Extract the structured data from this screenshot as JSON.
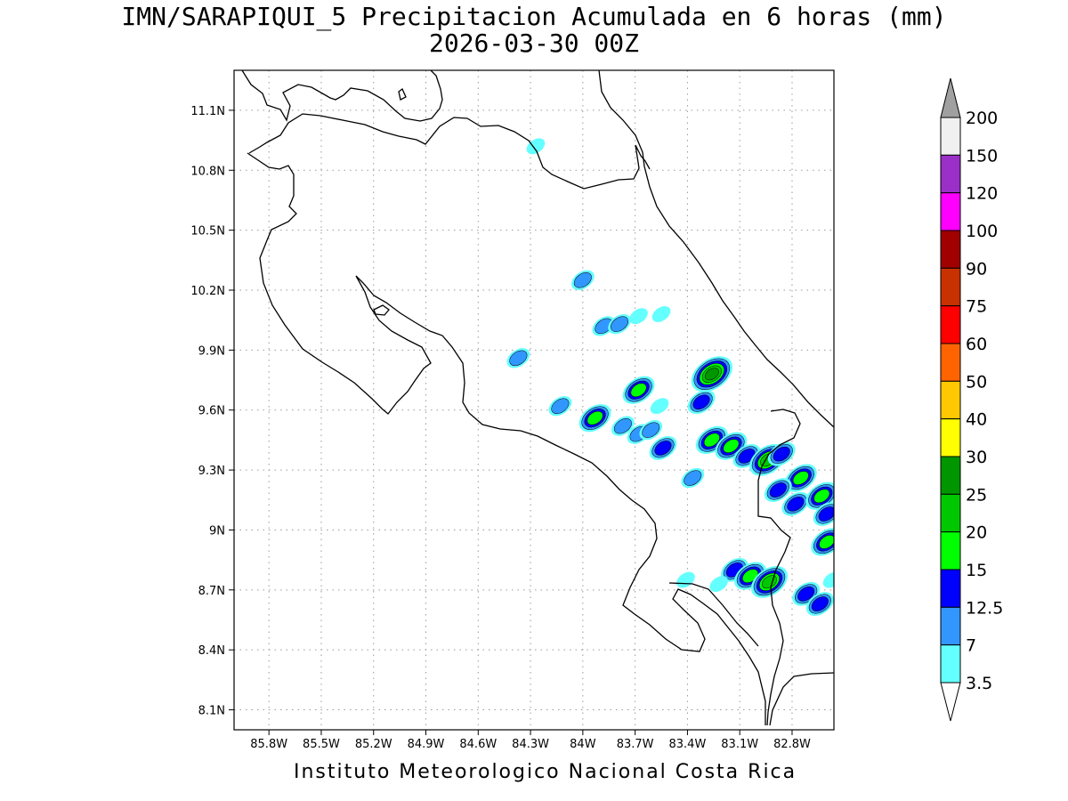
{
  "title": "IMN/SARAPIQUI_5 Precipitacion Acumulada en 6 horas (mm)",
  "subtitle": "2026-03-30 00Z",
  "footer": "Instituto Meteorologico Nacional Costa Rica",
  "lat_ticks": [
    "11.1N",
    "10.8N",
    "10.5N",
    "10.2N",
    "9.9N",
    "9.6N",
    "9.3N",
    "9N",
    "8.7N",
    "8.4N",
    "8.1N"
  ],
  "lon_ticks": [
    "85.8W",
    "85.5W",
    "85.2W",
    "84.9W",
    "84.6W",
    "84.3W",
    "84W",
    "83.7W",
    "83.4W",
    "83.1W",
    "82.8W"
  ],
  "map_extent": {
    "lon_min": -86.0,
    "lon_max": -82.56,
    "lat_min": 8.0,
    "lat_max": 11.3
  },
  "colorbar": {
    "labels": [
      "200",
      "150",
      "120",
      "100",
      "90",
      "75",
      "60",
      "50",
      "40",
      "30",
      "25",
      "20",
      "15",
      "12.5",
      "7",
      "3.5"
    ],
    "colors": [
      "#f0f0f0",
      "#9a30c8",
      "#ff00ff",
      "#a00000",
      "#c83200",
      "#ff0000",
      "#ff6400",
      "#ffc800",
      "#ffff00",
      "#009600",
      "#00c800",
      "#00ff00",
      "#0000ff",
      "#3296ff",
      "#64ffff"
    ],
    "over_color": "#a0a0a0",
    "under_color": "#ffffff"
  },
  "rain_cells": [
    {
      "lon": -84.27,
      "lat": 10.92,
      "level": 1
    },
    {
      "lon": -84.0,
      "lat": 10.25,
      "level": 2
    },
    {
      "lon": -83.88,
      "lat": 10.02,
      "level": 2
    },
    {
      "lon": -83.79,
      "lat": 10.03,
      "level": 2
    },
    {
      "lon": -83.55,
      "lat": 10.08,
      "level": 1
    },
    {
      "lon": -83.68,
      "lat": 10.07,
      "level": 1
    },
    {
      "lon": -84.37,
      "lat": 9.86,
      "level": 2
    },
    {
      "lon": -84.13,
      "lat": 9.62,
      "level": 2
    },
    {
      "lon": -83.68,
      "lat": 9.7,
      "level": 4
    },
    {
      "lon": -83.26,
      "lat": 9.78,
      "level": 6
    },
    {
      "lon": -83.32,
      "lat": 9.64,
      "level": 3
    },
    {
      "lon": -83.56,
      "lat": 9.62,
      "level": 1
    },
    {
      "lon": -83.93,
      "lat": 9.56,
      "level": 4
    },
    {
      "lon": -83.77,
      "lat": 9.52,
      "level": 2
    },
    {
      "lon": -83.68,
      "lat": 9.48,
      "level": 2
    },
    {
      "lon": -83.61,
      "lat": 9.5,
      "level": 2
    },
    {
      "lon": -83.54,
      "lat": 9.41,
      "level": 3
    },
    {
      "lon": -83.26,
      "lat": 9.45,
      "level": 4
    },
    {
      "lon": -83.15,
      "lat": 9.42,
      "level": 4
    },
    {
      "lon": -83.06,
      "lat": 9.37,
      "level": 3
    },
    {
      "lon": -82.94,
      "lat": 9.35,
      "level": 5
    },
    {
      "lon": -82.86,
      "lat": 9.38,
      "level": 3
    },
    {
      "lon": -82.75,
      "lat": 9.26,
      "level": 4
    },
    {
      "lon": -82.88,
      "lat": 9.2,
      "level": 3
    },
    {
      "lon": -82.78,
      "lat": 9.13,
      "level": 3
    },
    {
      "lon": -82.63,
      "lat": 9.17,
      "level": 4
    },
    {
      "lon": -82.6,
      "lat": 9.08,
      "level": 3
    },
    {
      "lon": -83.37,
      "lat": 9.26,
      "level": 2
    },
    {
      "lon": -82.6,
      "lat": 8.94,
      "level": 4
    },
    {
      "lon": -82.57,
      "lat": 8.75,
      "level": 1
    },
    {
      "lon": -83.41,
      "lat": 8.75,
      "level": 1
    },
    {
      "lon": -83.13,
      "lat": 8.8,
      "level": 3
    },
    {
      "lon": -83.04,
      "lat": 8.77,
      "level": 4
    },
    {
      "lon": -82.93,
      "lat": 8.74,
      "level": 5
    },
    {
      "lon": -82.72,
      "lat": 8.68,
      "level": 3
    },
    {
      "lon": -82.64,
      "lat": 8.63,
      "level": 3
    },
    {
      "lon": -83.22,
      "lat": 8.73,
      "level": 1
    }
  ]
}
